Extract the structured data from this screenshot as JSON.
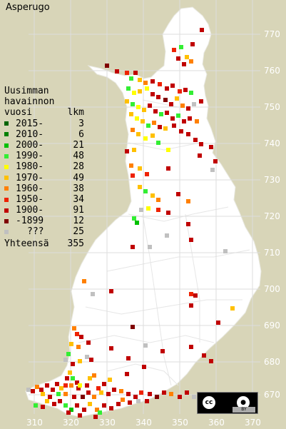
{
  "title": "Asperugo",
  "legend": {
    "heading": [
      "Uusimman",
      "havainnon"
    ],
    "col_year": "vuosi",
    "col_count": "lkm",
    "rows": [
      {
        "label": "2015-",
        "count": "3",
        "color": "#006400"
      },
      {
        "label": "2010-",
        "count": "6",
        "color": "#008000"
      },
      {
        "label": "2000-",
        "count": "21",
        "color": "#00c000"
      },
      {
        "label": "1990-",
        "count": "48",
        "color": "#33ee33"
      },
      {
        "label": "1980-",
        "count": "28",
        "color": "#ffff00"
      },
      {
        "label": "1970-",
        "count": "49",
        "color": "#ffc000"
      },
      {
        "label": "1960-",
        "count": "38",
        "color": "#ff8000"
      },
      {
        "label": "1950-",
        "count": "34",
        "color": "#ee2200"
      },
      {
        "label": "1900-",
        "count": "91",
        "color": "#c00000"
      },
      {
        "label": "-1899",
        "count": "12",
        "color": "#800000"
      },
      {
        "label": "???",
        "count": "25",
        "color": "#c0c0c0"
      }
    ],
    "total_label": "Yhteensä",
    "total_count": "355"
  },
  "axes": {
    "x_ticks": [
      "310",
      "320",
      "330",
      "340",
      "350",
      "360",
      "370"
    ],
    "y_ticks": [
      "770",
      "760",
      "750",
      "740",
      "730",
      "720",
      "710",
      "700",
      "690",
      "680",
      "670"
    ]
  },
  "license": {
    "cc": "cc",
    "by_icon": "person-icon",
    "by_text": "BY"
  }
}
